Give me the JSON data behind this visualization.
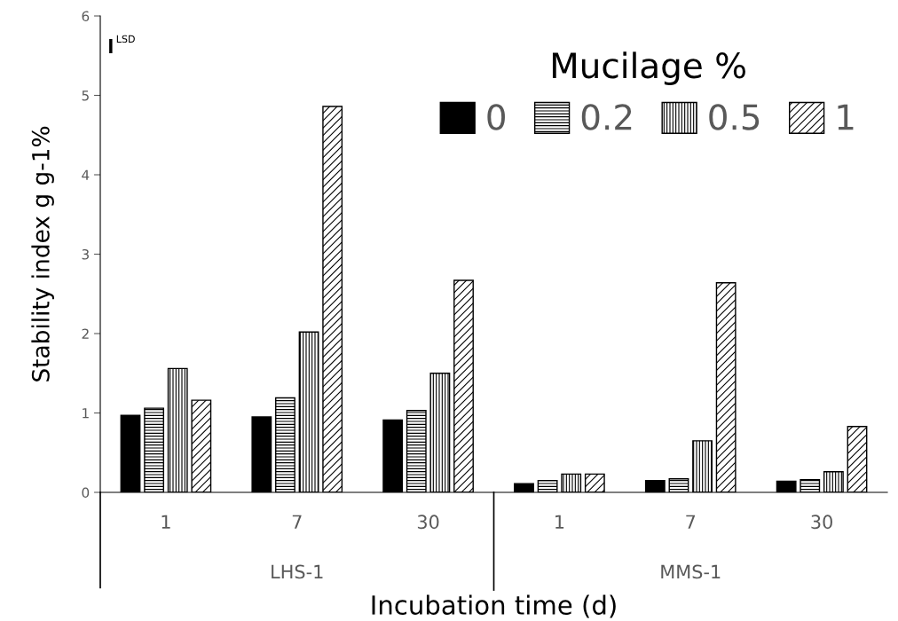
{
  "chart_data": {
    "type": "bar",
    "xlabel": "Incubation time (d)",
    "ylabel": "Stability index g g-1%",
    "legend_title": "Mucilage %",
    "categories": [
      "1",
      "7",
      "30",
      "1",
      "7",
      "30"
    ],
    "series": [
      {
        "name": "0",
        "color": "#000000",
        "values": [
          0.97,
          0.95,
          0.91,
          0.11,
          0.15,
          0.14
        ]
      },
      {
        "name": "0.2",
        "color": "#000000",
        "values": [
          1.06,
          1.19,
          1.03,
          0.15,
          0.17,
          0.16
        ]
      },
      {
        "name": "0.5",
        "color": "#000000",
        "values": [
          1.56,
          2.02,
          1.5,
          0.23,
          0.65,
          0.26
        ]
      },
      {
        "name": "1",
        "color": "#000000",
        "values": [
          1.16,
          4.86,
          2.67,
          0.23,
          2.64,
          0.83
        ]
      }
    ],
    "ylim": [
      0,
      6
    ],
    "yticks": [
      0,
      1,
      2,
      3,
      4,
      5,
      6
    ],
    "grid": false,
    "legend": "top right",
    "annotations": [
      "LSD",
      "LHS-1",
      "MMS-1"
    ]
  }
}
